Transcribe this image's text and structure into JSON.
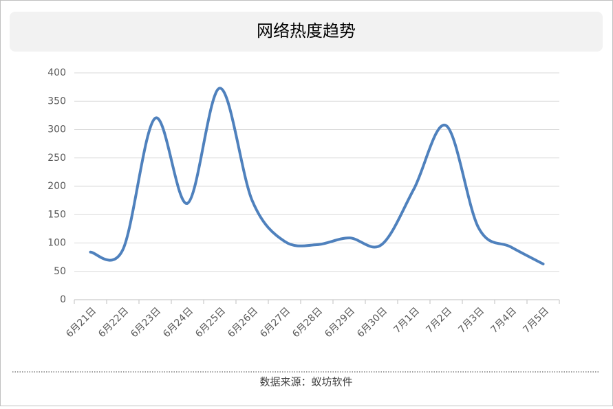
{
  "chart_data": {
    "type": "line",
    "title": "网络热度趋势",
    "categories": [
      "6月21日",
      "6月22日",
      "6月23日",
      "6月24日",
      "6月25日",
      "6月26日",
      "6月27日",
      "6月28日",
      "6月29日",
      "6月30日",
      "7月1日",
      "7月2日",
      "7月3日",
      "7月4日",
      "7月5日"
    ],
    "values": [
      84,
      88,
      320,
      170,
      373,
      175,
      103,
      97,
      109,
      97,
      195,
      307,
      127,
      93,
      63
    ],
    "color": "#4f81bd",
    "smooth": true,
    "ylim": [
      0,
      400
    ],
    "yticks": [
      0,
      50,
      100,
      150,
      200,
      250,
      300,
      350,
      400
    ],
    "grid": true
  },
  "source": "数据来源：蚁坊软件"
}
